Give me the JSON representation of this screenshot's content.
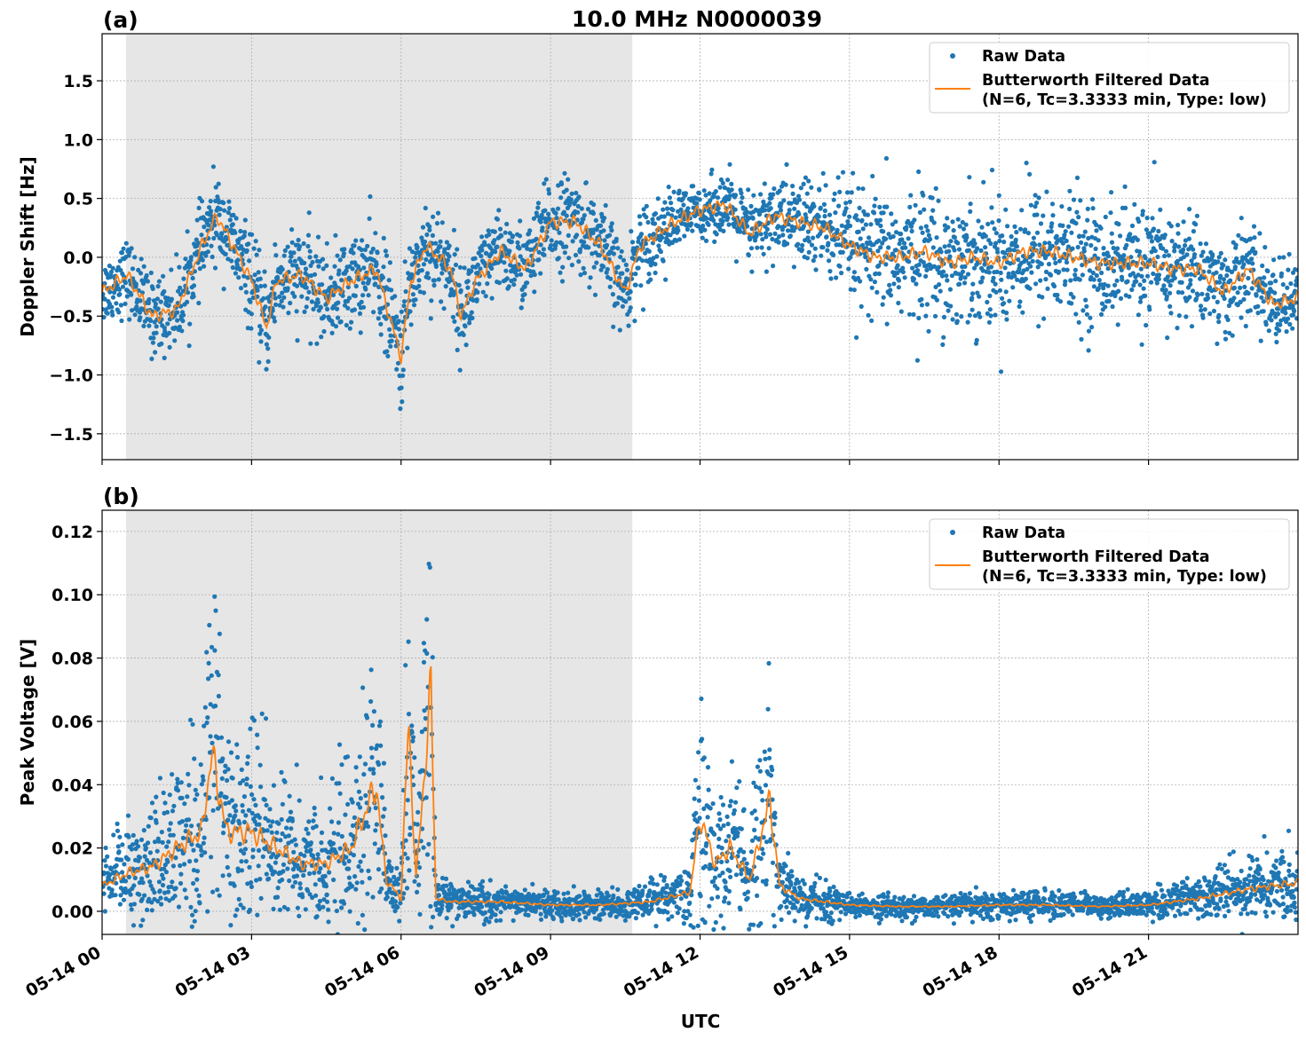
{
  "title": "10.0 MHz N0000039",
  "xlabel": "UTC",
  "colors": {
    "raw": "#1f77b4",
    "filtered": "#ff7f0e",
    "shade": "#e6e6e6",
    "grid": "#b0b0b0"
  },
  "chart_data": [
    {
      "type": "scatter",
      "panel_label": "(a)",
      "ylabel": "Doppler Shift [Hz]",
      "xlim": [
        "05-14 00:00",
        "05-15 00:00"
      ],
      "ylim": [
        -1.72,
        1.9
      ],
      "x_ticks": [
        "05-14 00",
        "05-14 03",
        "05-14 06",
        "05-14 09",
        "05-14 12",
        "05-14 15",
        "05-14 18",
        "05-14 21"
      ],
      "y_ticks": [
        -1.5,
        -1.0,
        -0.5,
        0.0,
        0.5,
        1.0,
        1.5
      ],
      "y_tick_labels": [
        "−1.5",
        "−1.0",
        "−0.5",
        "0.0",
        "0.5",
        "1.0",
        "1.5"
      ],
      "grid": true,
      "legend_placement": "upper-right",
      "shaded_interval_utc_hours": [
        0.48,
        10.64
      ],
      "series": [
        {
          "name": "Raw Data",
          "kind": "points",
          "hour": [
            0,
            1,
            2,
            3,
            4,
            5,
            6,
            7,
            8,
            9,
            10,
            11,
            12,
            13,
            14,
            15,
            16,
            17,
            18,
            19,
            20,
            21,
            22,
            23,
            24
          ],
          "spread": [
            0.25,
            0.3,
            0.3,
            0.35,
            0.35,
            0.35,
            0.4,
            0.35,
            0.3,
            0.35,
            0.35,
            0.3,
            0.2,
            0.3,
            0.35,
            0.45,
            0.5,
            0.5,
            0.5,
            0.5,
            0.45,
            0.45,
            0.4,
            0.35,
            0.3
          ]
        },
        {
          "name": "Butterworth Filtered Data\n(N=6, Tc=3.3333 min, Type: low)",
          "kind": "line",
          "legend_line1": "Butterworth Filtered Data",
          "legend_line2": "(N=6, Tc=3.3333 min, Type: low)",
          "hour": [
            0,
            0.5,
            1,
            1.5,
            2,
            2.3,
            2.5,
            3,
            3.3,
            3.5,
            4,
            4.5,
            5,
            5.5,
            6,
            6.2,
            6.5,
            7,
            7.2,
            7.5,
            8,
            8.5,
            9,
            9.5,
            10,
            10.5,
            10.8,
            11.5,
            12,
            12.5,
            13,
            13.5,
            14,
            14.5,
            15,
            15.5,
            16,
            16.5,
            17,
            17.5,
            18,
            18.5,
            19,
            19.5,
            20,
            20.5,
            21,
            21.5,
            22,
            22.5,
            23,
            23.5,
            24
          ],
          "value": [
            -0.3,
            -0.15,
            -0.5,
            -0.45,
            0.1,
            0.35,
            0.2,
            -0.2,
            -0.6,
            -0.2,
            -0.15,
            -0.35,
            -0.2,
            -0.1,
            -0.85,
            -0.2,
            0.1,
            -0.1,
            -0.5,
            -0.2,
            0.05,
            -0.1,
            0.3,
            0.3,
            0.1,
            -0.3,
            0.1,
            0.3,
            0.4,
            0.45,
            0.2,
            0.35,
            0.3,
            0.25,
            0.1,
            0.0,
            0.0,
            0.05,
            -0.05,
            0.0,
            -0.05,
            0.05,
            0.05,
            0.0,
            -0.05,
            -0.05,
            -0.05,
            -0.1,
            -0.1,
            -0.3,
            -0.1,
            -0.4,
            -0.35
          ]
        }
      ]
    },
    {
      "type": "scatter",
      "panel_label": "(b)",
      "ylabel": "Peak Voltage [V]",
      "xlim": [
        "05-14 00:00",
        "05-15 00:00"
      ],
      "ylim": [
        -0.0073,
        0.1267
      ],
      "x_ticks": [
        "05-14 00",
        "05-14 03",
        "05-14 06",
        "05-14 09",
        "05-14 12",
        "05-14 15",
        "05-14 18",
        "05-14 21"
      ],
      "y_ticks": [
        0.0,
        0.02,
        0.04,
        0.06,
        0.08,
        0.1,
        0.12
      ],
      "y_tick_labels": [
        "0.00",
        "0.02",
        "0.04",
        "0.06",
        "0.08",
        "0.10",
        "0.12"
      ],
      "grid": true,
      "legend_placement": "upper-right",
      "shaded_interval_utc_hours": [
        0.48,
        10.64
      ],
      "series": [
        {
          "name": "Raw Data",
          "kind": "points",
          "relative_spread": 0.6
        },
        {
          "name": "Butterworth Filtered Data\n(N=6, Tc=3.3333 min, Type: low)",
          "kind": "line",
          "legend_line1": "Butterworth Filtered Data",
          "legend_line2": "(N=6, Tc=3.3333 min, Type: low)",
          "hour": [
            0,
            0.5,
            1,
            1.5,
            2,
            2.2,
            2.5,
            3,
            3.5,
            4,
            4.5,
            5,
            5.5,
            5.7,
            6,
            6.15,
            6.3,
            6.5,
            6.6,
            6.7,
            7,
            8,
            9,
            10,
            11,
            11.8,
            12,
            12.3,
            12.6,
            13,
            13.4,
            13.6,
            14,
            15,
            16,
            17,
            18,
            19,
            20,
            21,
            22,
            23,
            24
          ],
          "value": [
            0.008,
            0.012,
            0.014,
            0.02,
            0.025,
            0.05,
            0.025,
            0.025,
            0.02,
            0.015,
            0.015,
            0.02,
            0.04,
            0.01,
            0.004,
            0.06,
            0.01,
            0.05,
            0.07,
            0.004,
            0.003,
            0.003,
            0.002,
            0.002,
            0.003,
            0.006,
            0.03,
            0.015,
            0.02,
            0.01,
            0.035,
            0.008,
            0.004,
            0.002,
            0.0015,
            0.0015,
            0.002,
            0.002,
            0.0015,
            0.002,
            0.004,
            0.007,
            0.009
          ]
        }
      ]
    }
  ]
}
